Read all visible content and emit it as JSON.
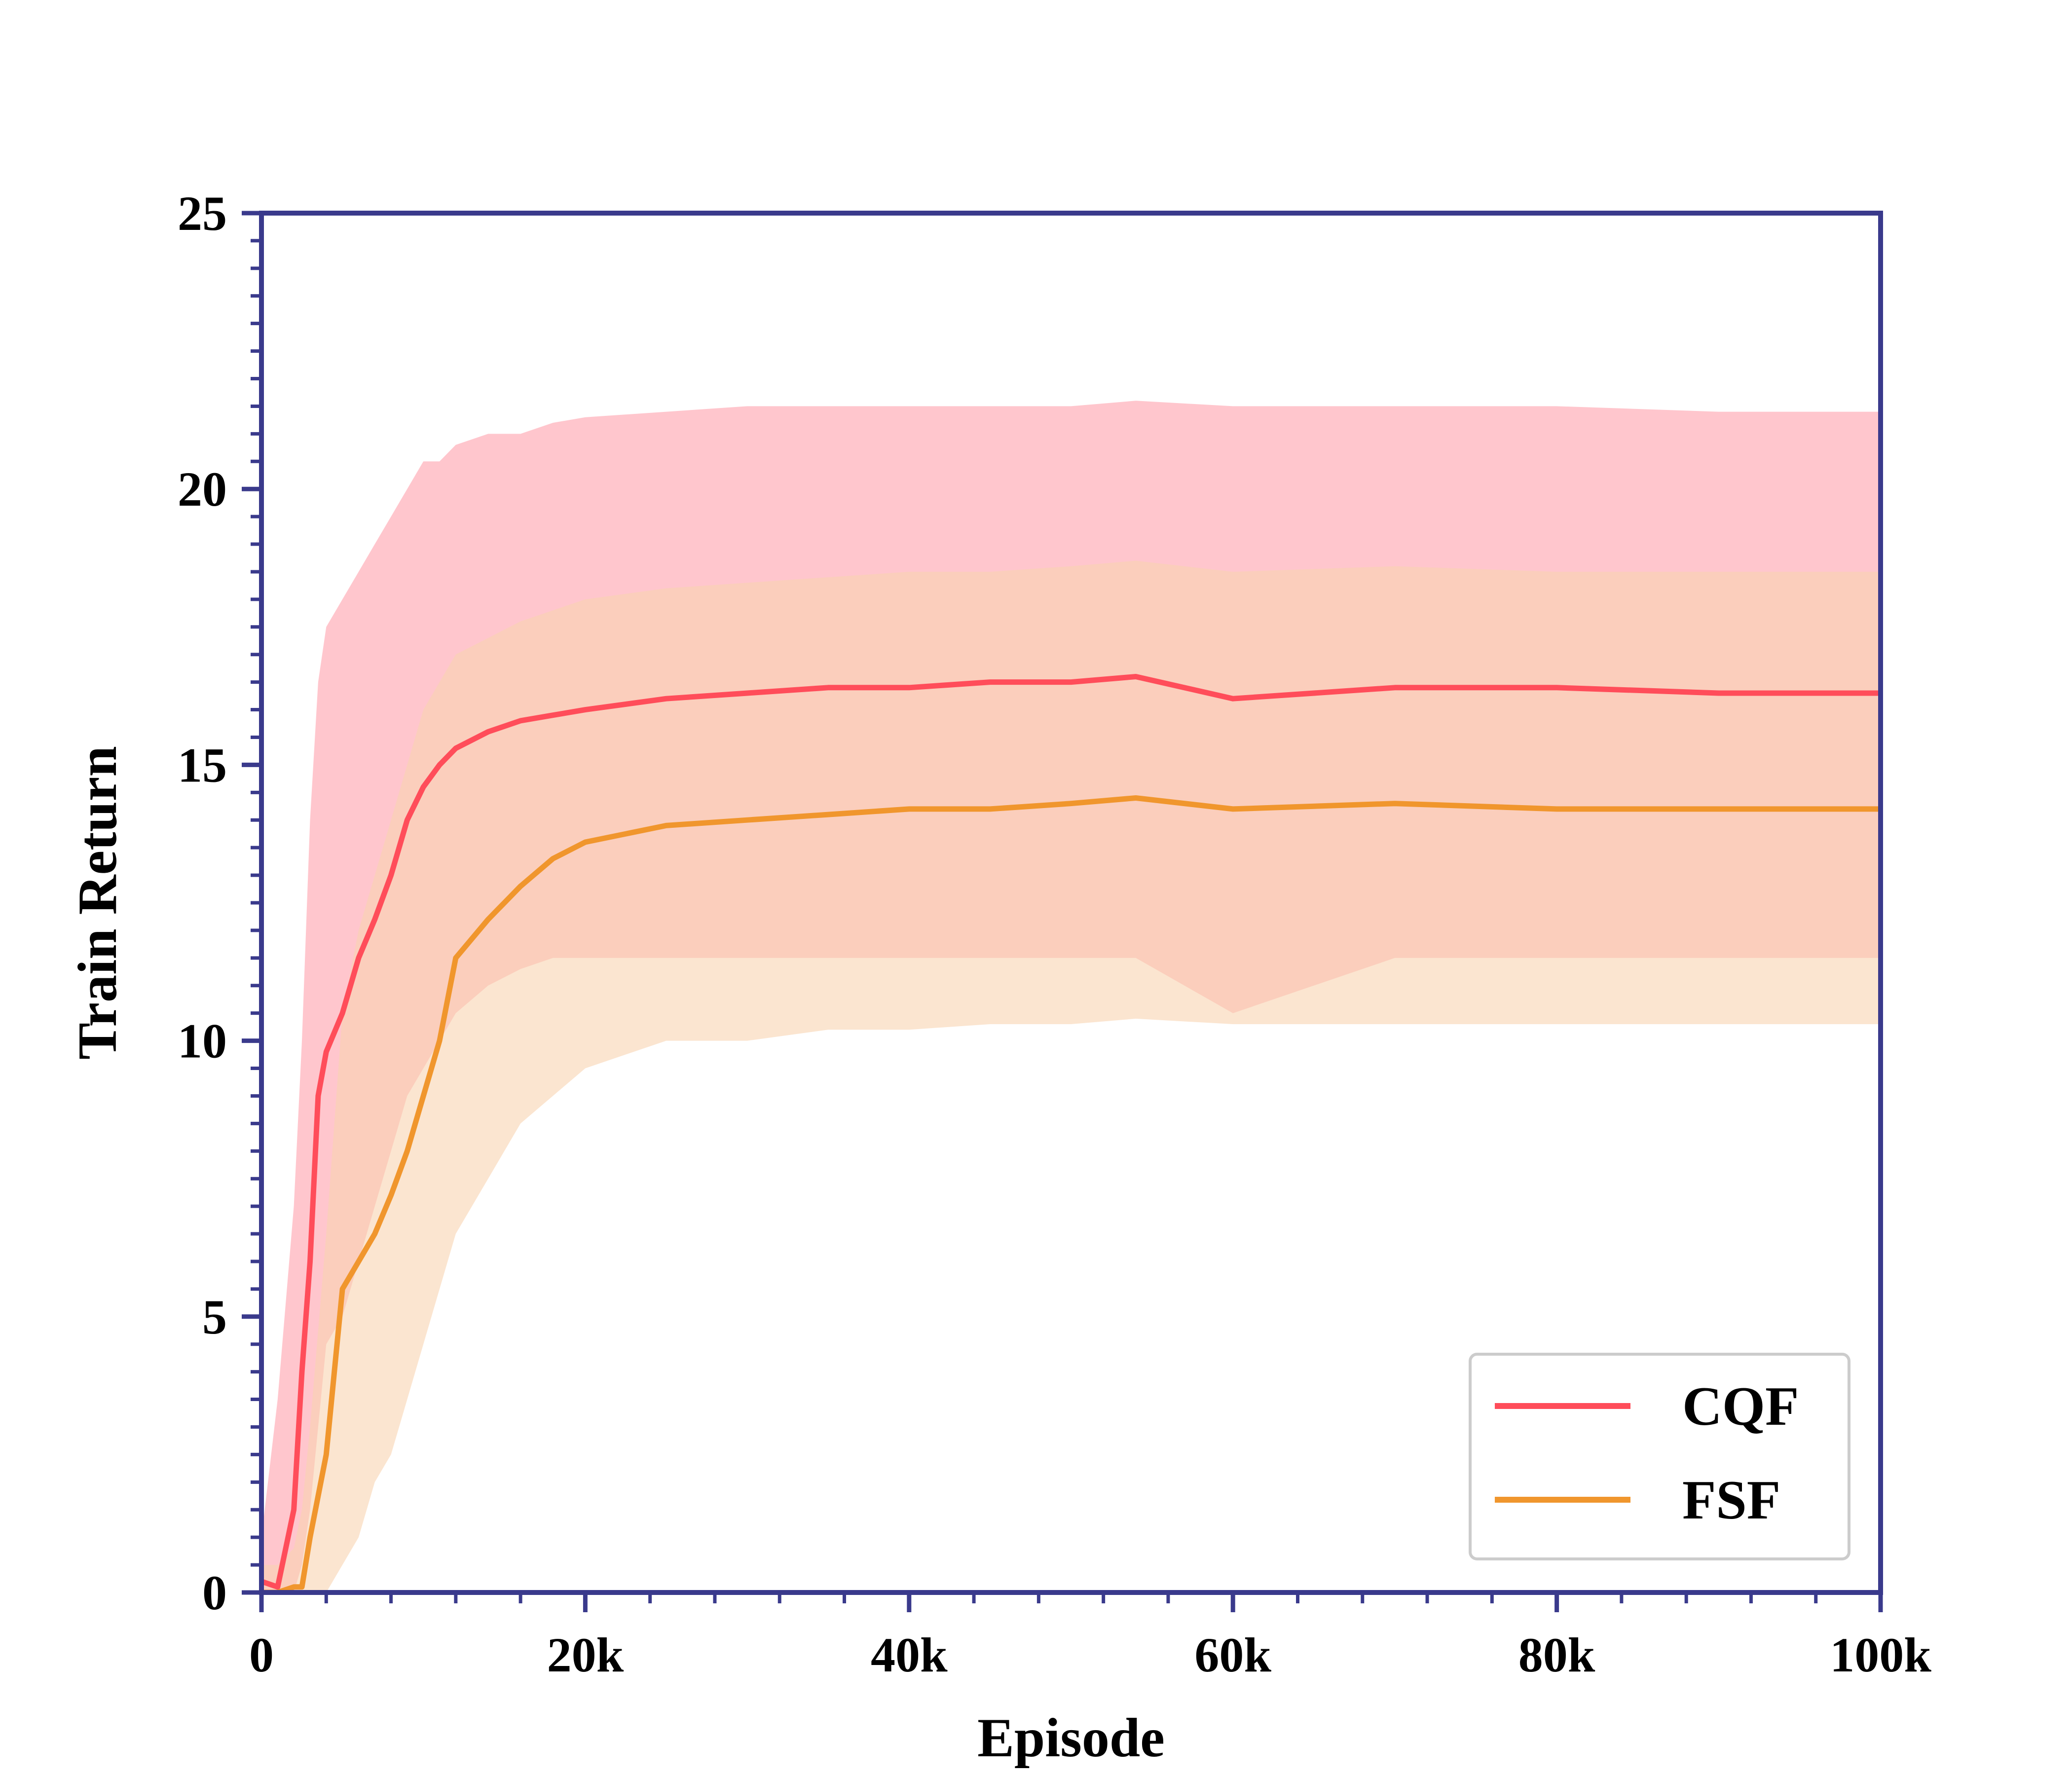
{
  "chart_data": {
    "type": "line",
    "xlabel": "Episode",
    "ylabel": "Train Return",
    "xlim": [
      0,
      100000
    ],
    "ylim": [
      0,
      25
    ],
    "x_ticks": [
      0,
      20000,
      40000,
      60000,
      80000,
      100000
    ],
    "x_tick_labels": [
      "0",
      "20k",
      "40k",
      "60k",
      "80k",
      "100k"
    ],
    "y_ticks": [
      0,
      5,
      10,
      15,
      20,
      25
    ],
    "y_tick_labels": [
      "0",
      "5",
      "10",
      "15",
      "20",
      "25"
    ],
    "grid": false,
    "legend_position": "bottom-right",
    "frame_color": "#3a3a8c",
    "series": [
      {
        "name": "CQF",
        "color": "#ff4d5a",
        "band_color": "#ffc0c8",
        "x": [
          0,
          1000,
          2000,
          2500,
          3000,
          3500,
          4000,
          5000,
          6000,
          7000,
          8000,
          9000,
          10000,
          11000,
          12000,
          14000,
          16000,
          18000,
          20000,
          25000,
          30000,
          35000,
          40000,
          45000,
          50000,
          54000,
          60000,
          70000,
          80000,
          90000,
          100000
        ],
        "mean": [
          0.2,
          0.1,
          1.5,
          4.0,
          6.0,
          9.0,
          9.8,
          10.5,
          11.5,
          12.2,
          13.0,
          14.0,
          14.6,
          15.0,
          15.3,
          15.6,
          15.8,
          15.9,
          16.0,
          16.2,
          16.3,
          16.4,
          16.4,
          16.5,
          16.5,
          16.6,
          16.2,
          16.4,
          16.4,
          16.3,
          16.3
        ],
        "upper": [
          1.0,
          3.5,
          7.0,
          10.0,
          14.0,
          16.5,
          17.5,
          18.0,
          18.5,
          19.0,
          19.5,
          20.0,
          20.5,
          20.5,
          20.8,
          21.0,
          21.0,
          21.2,
          21.3,
          21.4,
          21.5,
          21.5,
          21.5,
          21.5,
          21.5,
          21.6,
          21.5,
          21.5,
          21.5,
          21.4,
          21.4
        ],
        "lower": [
          0.0,
          0.0,
          0.0,
          0.5,
          1.5,
          3.0,
          4.5,
          5.0,
          6.0,
          7.0,
          8.0,
          9.0,
          9.5,
          10.0,
          10.5,
          11.0,
          11.3,
          11.5,
          11.5,
          11.5,
          11.5,
          11.5,
          11.5,
          11.5,
          11.5,
          11.5,
          10.5,
          11.5,
          11.5,
          11.5,
          11.5
        ]
      },
      {
        "name": "FSF",
        "color": "#f0962d",
        "band_color": "#f8d3b0",
        "x": [
          0,
          1000,
          2000,
          2500,
          3000,
          4000,
          5000,
          6000,
          7000,
          8000,
          9000,
          10000,
          11000,
          12000,
          14000,
          16000,
          18000,
          20000,
          25000,
          30000,
          35000,
          40000,
          45000,
          50000,
          54000,
          60000,
          70000,
          80000,
          90000,
          100000
        ],
        "mean": [
          0.0,
          0.0,
          0.1,
          0.1,
          1.0,
          2.5,
          5.5,
          6.0,
          6.5,
          7.2,
          8.0,
          9.0,
          10.0,
          11.5,
          12.2,
          12.8,
          13.3,
          13.6,
          13.9,
          14.0,
          14.1,
          14.2,
          14.2,
          14.3,
          14.4,
          14.2,
          14.3,
          14.2,
          14.2,
          14.2
        ],
        "upper": [
          0.5,
          0.5,
          0.8,
          1.5,
          3.0,
          6.5,
          10.5,
          12.0,
          13.0,
          14.0,
          15.0,
          16.0,
          16.5,
          17.0,
          17.3,
          17.6,
          17.8,
          18.0,
          18.2,
          18.3,
          18.4,
          18.5,
          18.5,
          18.6,
          18.7,
          18.5,
          18.6,
          18.5,
          18.5,
          18.5
        ],
        "lower": [
          0.0,
          0.0,
          0.0,
          0.0,
          0.0,
          0.0,
          0.5,
          1.0,
          2.0,
          2.5,
          3.5,
          4.5,
          5.5,
          6.5,
          7.5,
          8.5,
          9.0,
          9.5,
          10.0,
          10.0,
          10.2,
          10.2,
          10.3,
          10.3,
          10.4,
          10.3,
          10.3,
          10.3,
          10.3,
          10.3
        ]
      }
    ]
  }
}
